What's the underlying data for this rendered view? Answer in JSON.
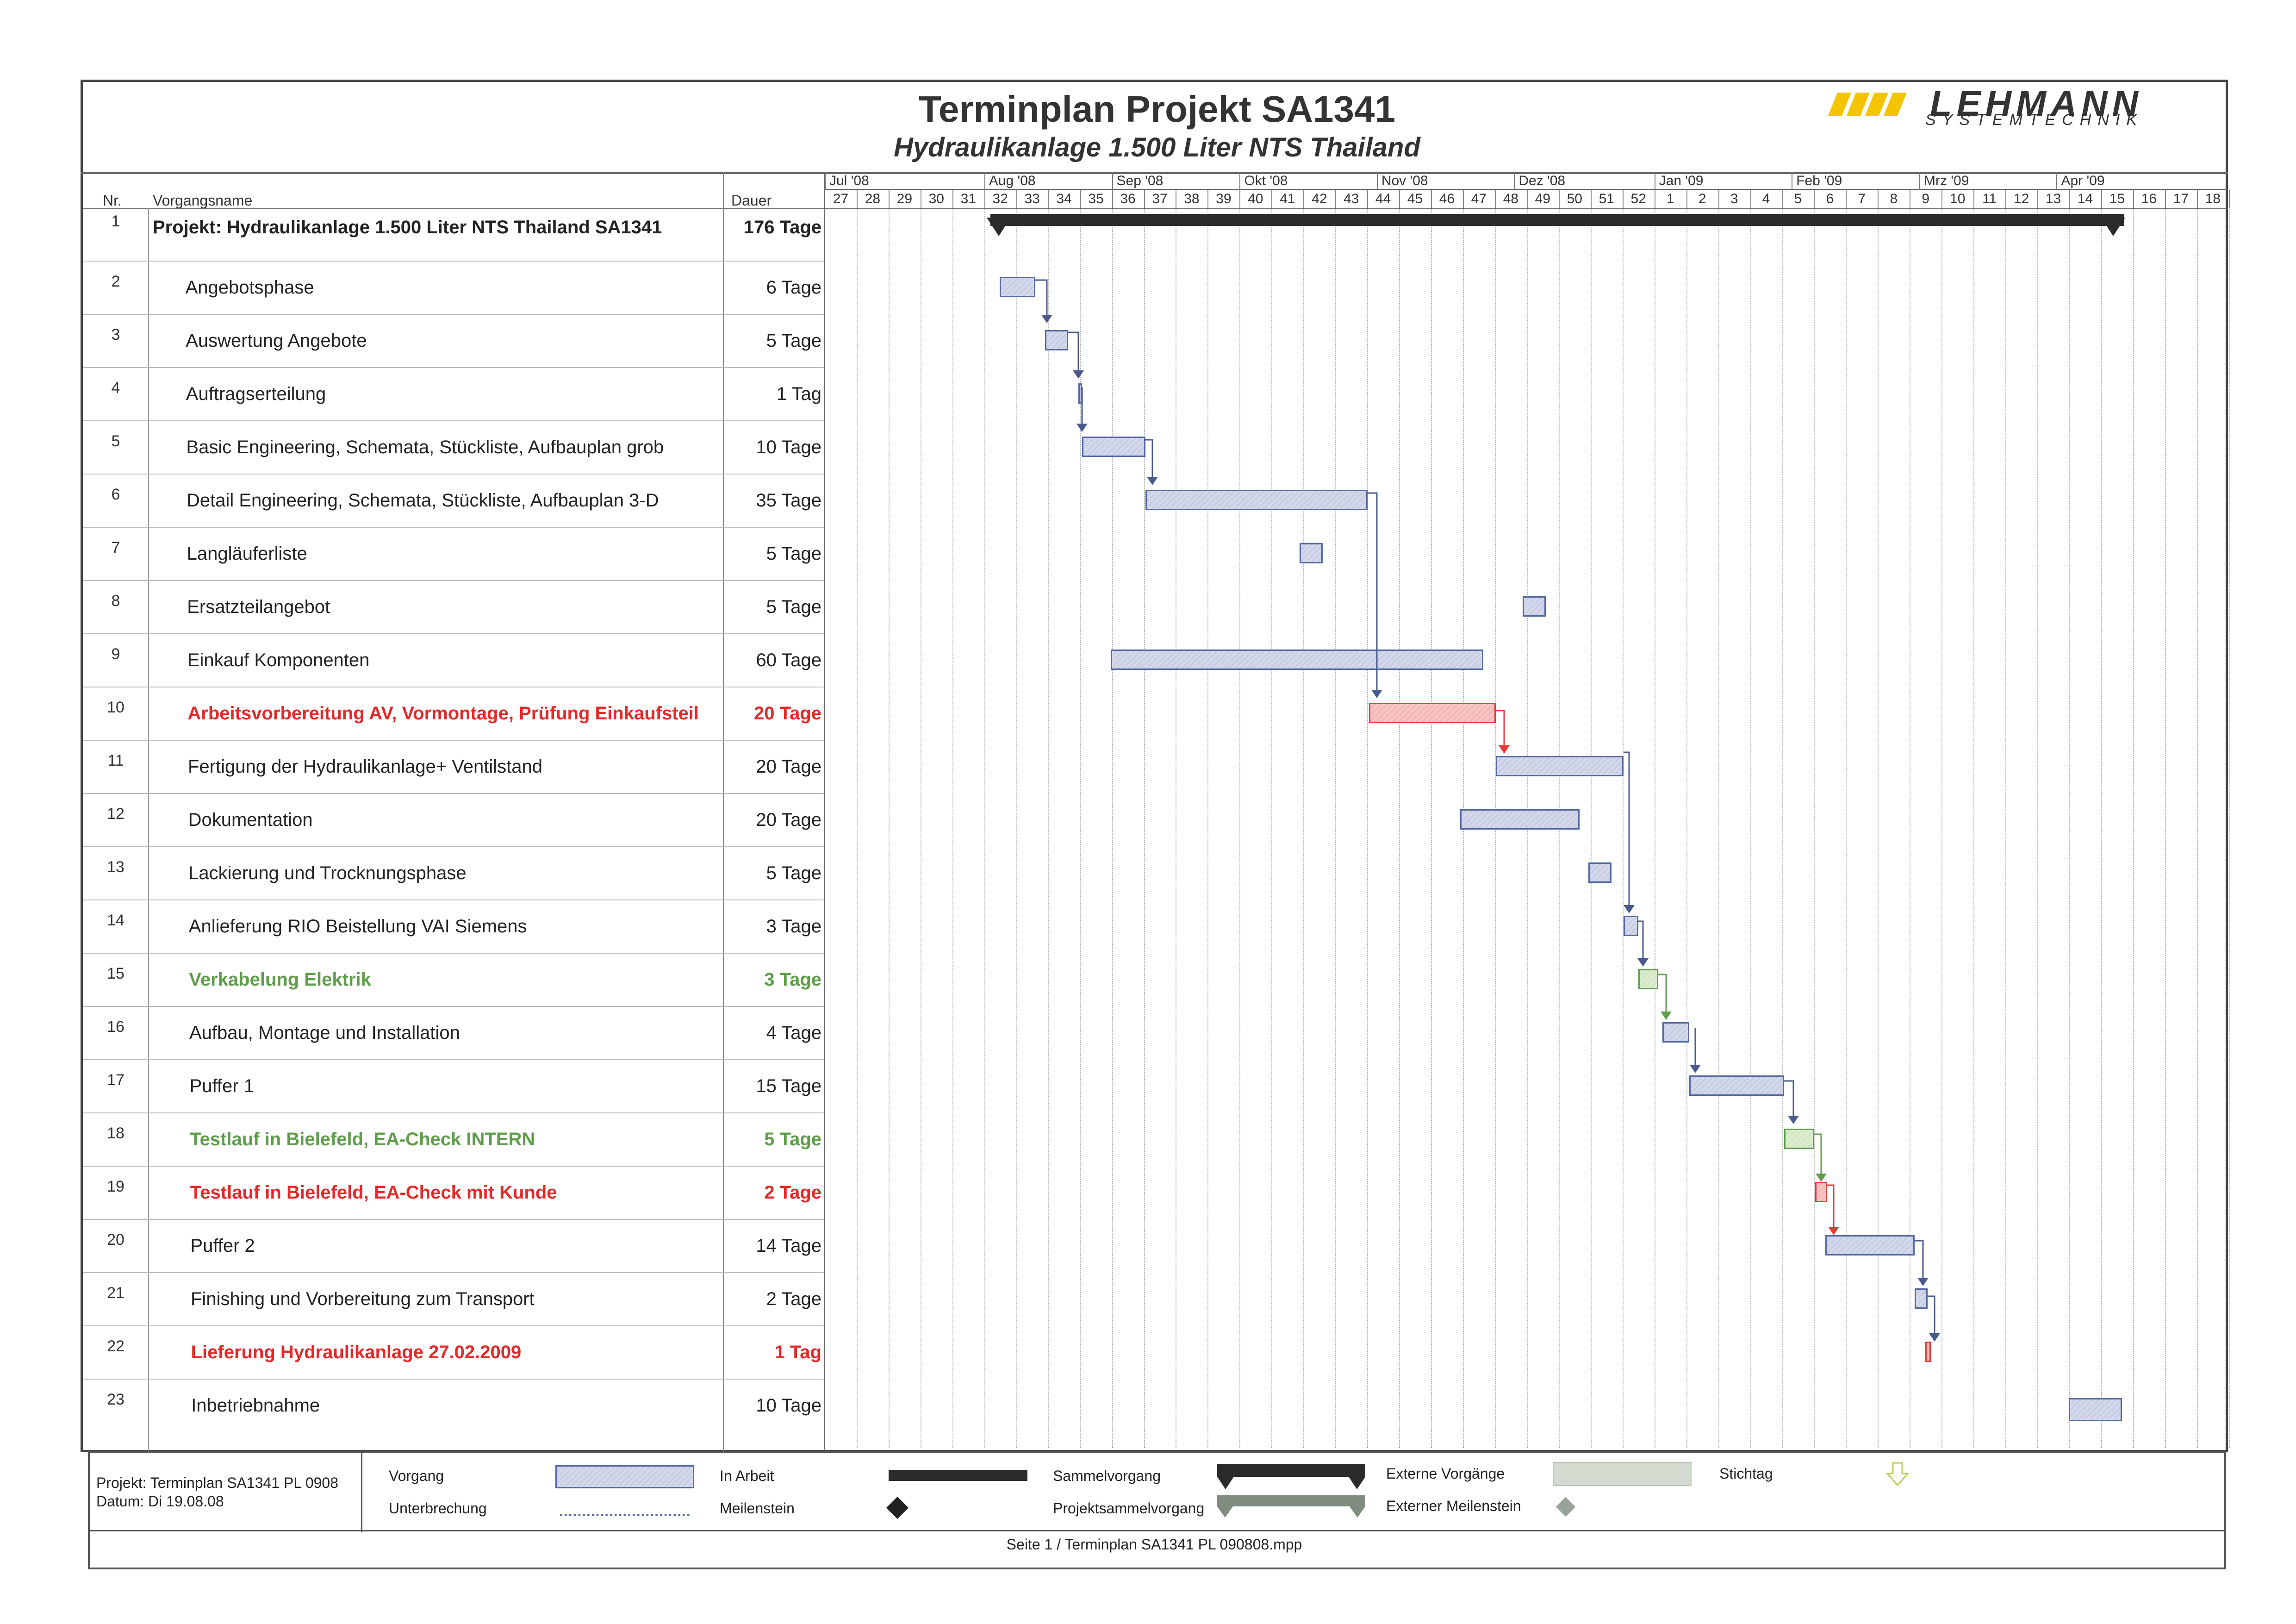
{
  "header": {
    "title": "Terminplan Projekt SA1341",
    "subtitle": "Hydraulikanlage 1.500 Liter NTS Thailand",
    "logo_text": "LEHMANN",
    "logo_sub": "SYSTEMTECHNIK"
  },
  "columns": {
    "nr": "Nr.",
    "name": "Vorgangsname",
    "duration": "Dauer"
  },
  "months": [
    "Jul '08",
    "Aug '08",
    "Sep '08",
    "Okt '08",
    "Nov '08",
    "Dez '08",
    "Jan '09",
    "Feb '09",
    "Mrz '09",
    "Apr '09"
  ],
  "weeks": [
    "27",
    "28",
    "29",
    "30",
    "31",
    "32",
    "33",
    "34",
    "35",
    "36",
    "37",
    "38",
    "39",
    "40",
    "41",
    "42",
    "43",
    "44",
    "45",
    "46",
    "47",
    "48",
    "49",
    "50",
    "51",
    "52",
    "1",
    "2",
    "3",
    "4",
    "5",
    "6",
    "7",
    "8",
    "9",
    "10",
    "11",
    "12",
    "13",
    "14",
    "15",
    "16",
    "17",
    "18"
  ],
  "tasks": [
    {
      "nr": "1",
      "name": "Projekt: Hydraulikanlage 1.500 Liter NTS Thailand SA1341",
      "duration": "176 Tage",
      "style": "summary"
    },
    {
      "nr": "2",
      "name": "Angebotsphase",
      "duration": "6 Tage",
      "style": "normal"
    },
    {
      "nr": "3",
      "name": "Auswertung Angebote",
      "duration": "5 Tage",
      "style": "normal"
    },
    {
      "nr": "4",
      "name": "Auftragserteilung",
      "duration": "1 Tag",
      "style": "normal"
    },
    {
      "nr": "5",
      "name": "Basic Engineering, Schemata, Stückliste, Aufbauplan grob",
      "duration": "10 Tage",
      "style": "normal"
    },
    {
      "nr": "6",
      "name": "Detail Engineering, Schemata, Stückliste, Aufbauplan 3-D",
      "duration": "35 Tage",
      "style": "normal"
    },
    {
      "nr": "7",
      "name": "Langläuferliste",
      "duration": "5 Tage",
      "style": "normal"
    },
    {
      "nr": "8",
      "name": "Ersatzteilangebot",
      "duration": "5 Tage",
      "style": "normal"
    },
    {
      "nr": "9",
      "name": "Einkauf Komponenten",
      "duration": "60 Tage",
      "style": "normal"
    },
    {
      "nr": "10",
      "name": "Arbeitsvorbereitung AV, Vormontage, Prüfung Einkaufsteil",
      "duration": "20 Tage",
      "style": "red"
    },
    {
      "nr": "11",
      "name": "Fertigung der Hydraulikanlage+ Ventilstand",
      "duration": "20 Tage",
      "style": "normal"
    },
    {
      "nr": "12",
      "name": "Dokumentation",
      "duration": "20 Tage",
      "style": "normal"
    },
    {
      "nr": "13",
      "name": "Lackierung und Trocknungsphase",
      "duration": "5 Tage",
      "style": "normal"
    },
    {
      "nr": "14",
      "name": "Anlieferung RIO Beistellung VAI Siemens",
      "duration": "3 Tage",
      "style": "normal"
    },
    {
      "nr": "15",
      "name": "Verkabelung Elektrik",
      "duration": "3 Tage",
      "style": "green"
    },
    {
      "nr": "16",
      "name": "Aufbau, Montage und Installation",
      "duration": "4 Tage",
      "style": "normal"
    },
    {
      "nr": "17",
      "name": "Puffer 1",
      "duration": "15 Tage",
      "style": "normal"
    },
    {
      "nr": "18",
      "name": "Testlauf in Bielefeld, EA-Check INTERN",
      "duration": "5 Tage",
      "style": "green"
    },
    {
      "nr": "19",
      "name": "Testlauf in Bielefeld, EA-Check mit Kunde",
      "duration": "2 Tage",
      "style": "red"
    },
    {
      "nr": "20",
      "name": "Puffer 2",
      "duration": "14 Tage",
      "style": "normal"
    },
    {
      "nr": "21",
      "name": "Finishing und Vorbereitung zum Transport",
      "duration": "2 Tage",
      "style": "normal"
    },
    {
      "nr": "22",
      "name": "Lieferung Hydraulikanlage 27.02.2009",
      "duration": "1 Tag",
      "style": "red"
    },
    {
      "nr": "23",
      "name": "Inbetriebnahme",
      "duration": "10 Tage",
      "style": "normal"
    }
  ],
  "legend": {
    "project": "Projekt: Terminplan SA1341 PL 0908",
    "date": "Datum: Di 19.08.08",
    "vorgang": "Vorgang",
    "unterbrechung": "Unterbrechung",
    "in_arbeit": "In Arbeit",
    "meilenstein": "Meilenstein",
    "sammelvorgang": "Sammelvorgang",
    "projektsammelvorgang": "Projektsammelvorgang",
    "externe_vorgaenge": "Externe Vorgänge",
    "externer_meilenstein": "Externer Meilenstein",
    "stichtag": "Stichtag"
  },
  "footer": "Seite 1 / Terminplan SA1341 PL 090808.mpp",
  "colors": {
    "task_bar": "#c5cbe2",
    "critical": "#e53b3b",
    "external": "#5e9e4a",
    "summary": "#2b2b2b"
  }
}
